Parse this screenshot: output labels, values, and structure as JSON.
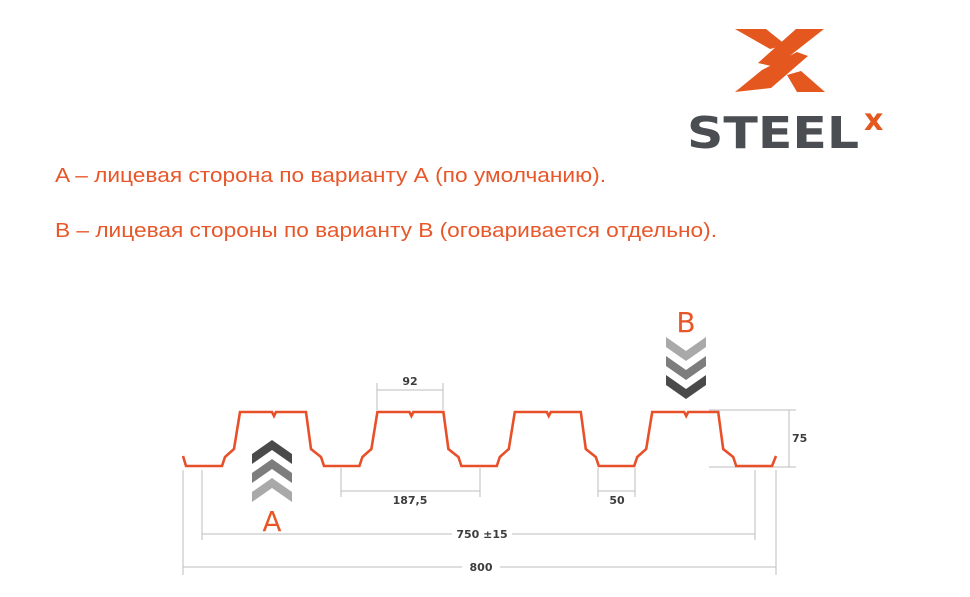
{
  "logo": {
    "text": "STEEL",
    "superscript": "x",
    "text_color": "#4a4d52",
    "accent_color": "#e4571e"
  },
  "descriptions": [
    "A – лицевая сторона по варианту А (по умолчанию).",
    "B – лицевая стороны по варианту В (оговаривается отдельно)."
  ],
  "text_color": "#e8572a",
  "profile": {
    "stroke_color": "#e8502a",
    "rib_count": 4,
    "side_a_label": "A",
    "side_b_label": "B",
    "chevron_colors": [
      "#4a4a4a",
      "#7d7d7d",
      "#a9a9a9"
    ],
    "dimensions": {
      "rib_top_width": "92",
      "pitch": "187,5",
      "trough_width": "50",
      "height": "75",
      "effective_width": "750 ±15",
      "total_width": "800"
    }
  }
}
